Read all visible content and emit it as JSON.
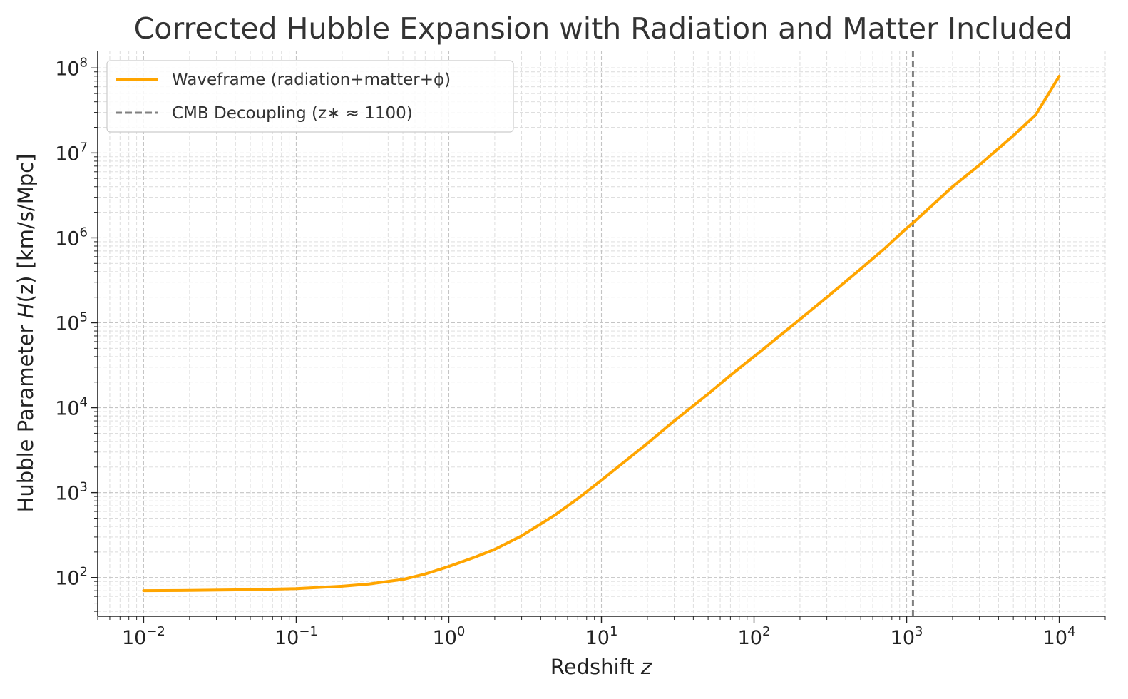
{
  "chart_data": {
    "type": "line",
    "title": "Corrected Hubble Expansion with Radiation and Matter Included",
    "xlabel": "Redshift z",
    "ylabel": "Hubble Parameter H(z) [km/s/Mpc]",
    "x_scale": "log",
    "y_scale": "log",
    "xlim": [
      0.005,
      20000
    ],
    "ylim": [
      35,
      160000000
    ],
    "x_ticks": [
      {
        "value": 0.01,
        "base": "10",
        "exp": "−2"
      },
      {
        "value": 0.1,
        "base": "10",
        "exp": "−1"
      },
      {
        "value": 1,
        "base": "10",
        "exp": "0"
      },
      {
        "value": 10,
        "base": "10",
        "exp": "1"
      },
      {
        "value": 100,
        "base": "10",
        "exp": "2"
      },
      {
        "value": 1000,
        "base": "10",
        "exp": "3"
      },
      {
        "value": 10000,
        "base": "10",
        "exp": "4"
      }
    ],
    "y_ticks": [
      {
        "value": 100,
        "base": "10",
        "exp": "2"
      },
      {
        "value": 1000,
        "base": "10",
        "exp": "3"
      },
      {
        "value": 10000,
        "base": "10",
        "exp": "4"
      },
      {
        "value": 100000,
        "base": "10",
        "exp": "5"
      },
      {
        "value": 1000000,
        "base": "10",
        "exp": "6"
      },
      {
        "value": 10000000,
        "base": "10",
        "exp": "7"
      },
      {
        "value": 100000000,
        "base": "10",
        "exp": "8"
      }
    ],
    "grid": true,
    "legend_position": "top-left",
    "series": [
      {
        "name": "Waveframe (radiation+matter+ϕ)",
        "color": "#FFA500",
        "x": [
          0.01,
          0.02,
          0.05,
          0.1,
          0.2,
          0.3,
          0.5,
          0.7,
          1,
          1.5,
          2,
          3,
          5,
          7,
          10,
          20,
          30,
          50,
          70,
          100,
          200,
          300,
          500,
          700,
          1000,
          1100,
          2000,
          3000,
          5000,
          7000,
          10000
        ],
        "y": [
          70,
          70.5,
          72,
          74,
          79,
          84,
          95,
          110,
          135,
          175,
          215,
          310,
          550,
          850,
          1400,
          3800,
          7000,
          14500,
          24000,
          40000,
          110000,
          200000,
          430000,
          720000,
          1300000,
          1500000,
          4000000,
          7200000,
          16000000,
          28000000,
          80000000
        ]
      },
      {
        "name": "CMB Decoupling (z∗ ≈ 1100)",
        "color": "#808080",
        "type": "vline",
        "x_value": 1100
      }
    ]
  }
}
